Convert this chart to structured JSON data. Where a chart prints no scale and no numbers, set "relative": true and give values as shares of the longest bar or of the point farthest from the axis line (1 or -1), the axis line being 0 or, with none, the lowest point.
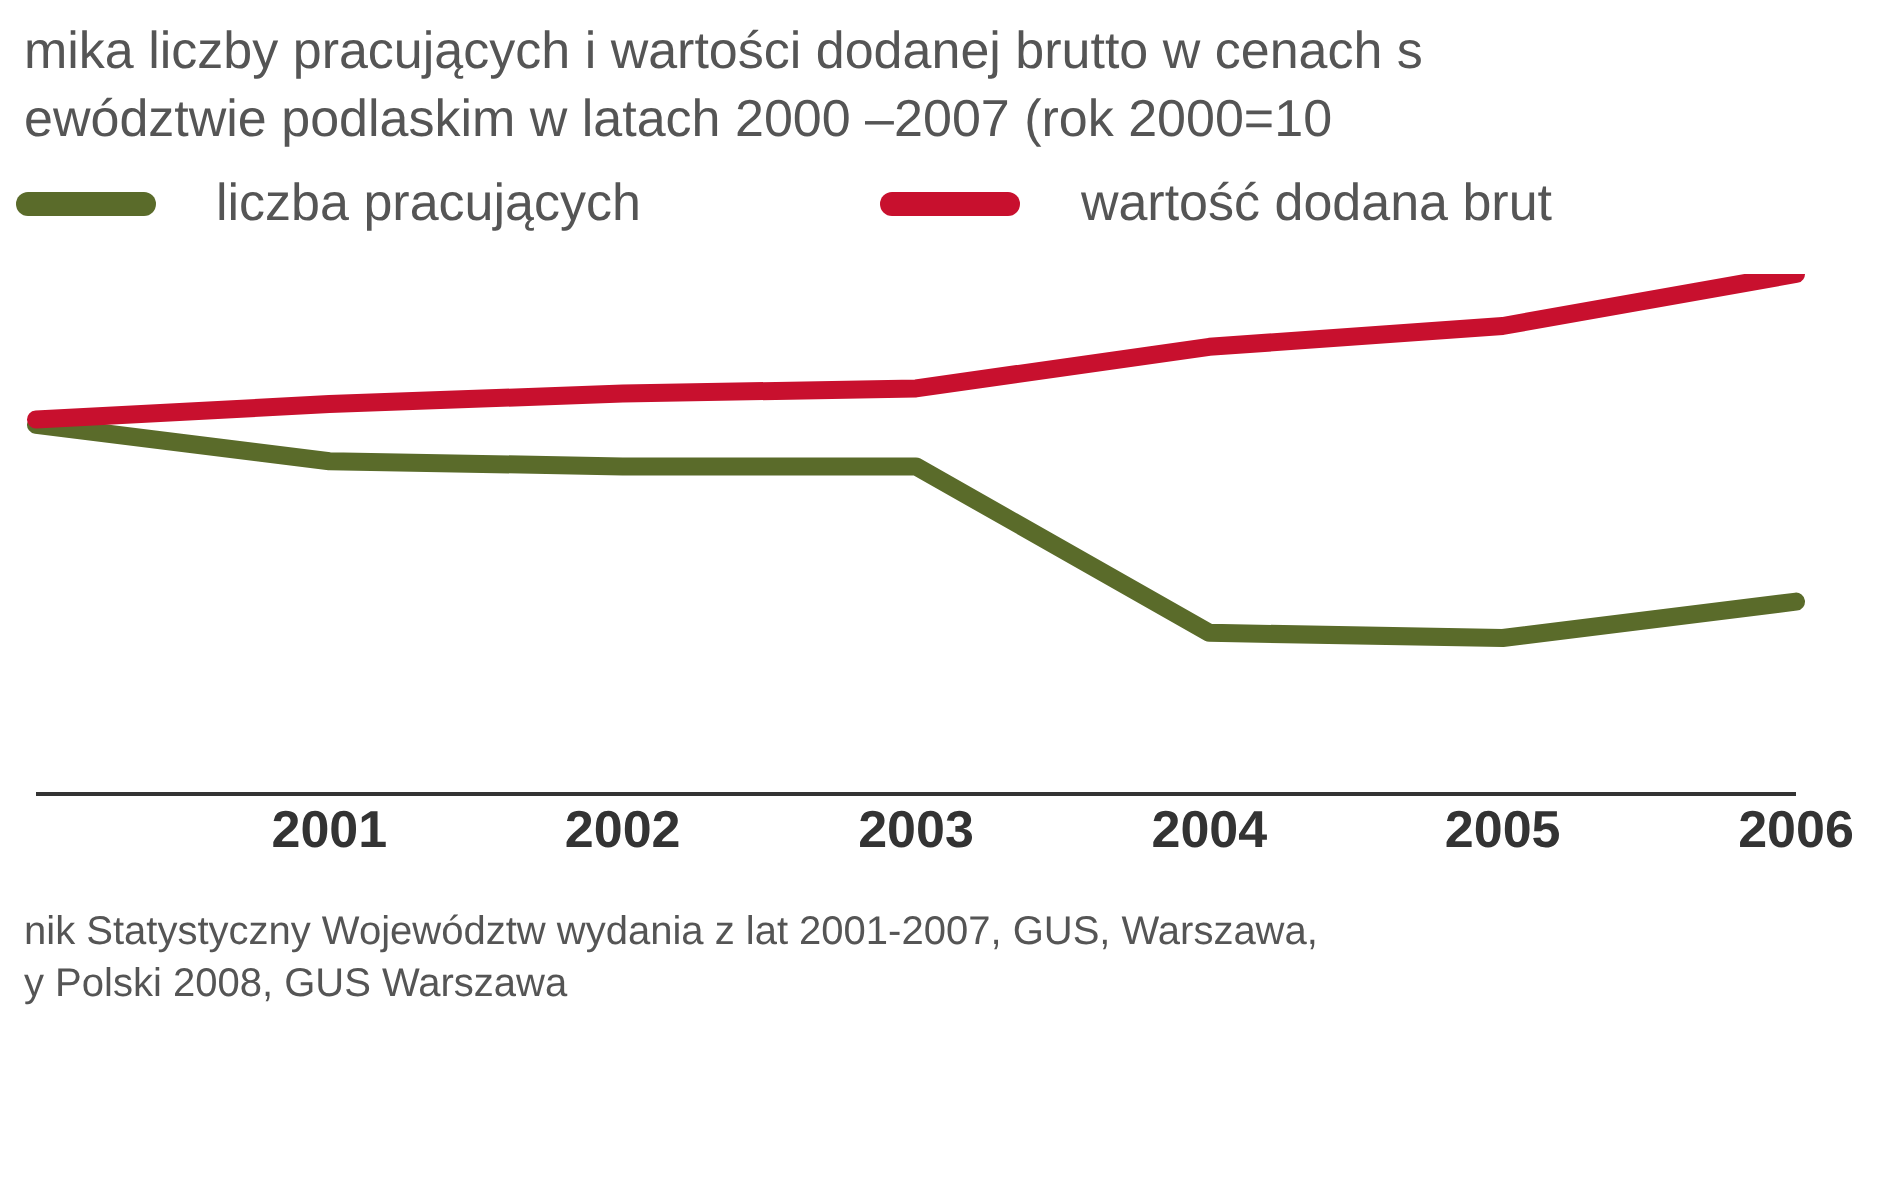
{
  "chart_data": {
    "type": "line",
    "title": "mika liczby pracujących i wartości dodanej brutto w cenach s",
    "subtitle": "ewództwie podlaskim w latach 2000 –2007 (rok 2000=10",
    "relative": true,
    "categories": [
      null,
      "2001",
      "2002",
      "2003",
      "2004",
      "2005",
      "2006"
    ],
    "series": [
      {
        "name": "liczba pracujących",
        "color": "#5a6b2a",
        "values": [
          0.71,
          0.64,
          0.63,
          0.63,
          0.31,
          0.3,
          0.37
        ]
      },
      {
        "name": "wartość dodana brut",
        "color": "#c8102e",
        "values": [
          0.72,
          0.75,
          0.77,
          0.78,
          0.86,
          0.9,
          1
        ]
      }
    ],
    "legend": "top",
    "marker": "none",
    "line_style": "solid",
    "annotations": [
      "nik Statystyczny Województw wydania z lat 2001-2007, GUS, Warszawa,",
      "y Polski 2008, GUS Warszawa"
    ]
  }
}
